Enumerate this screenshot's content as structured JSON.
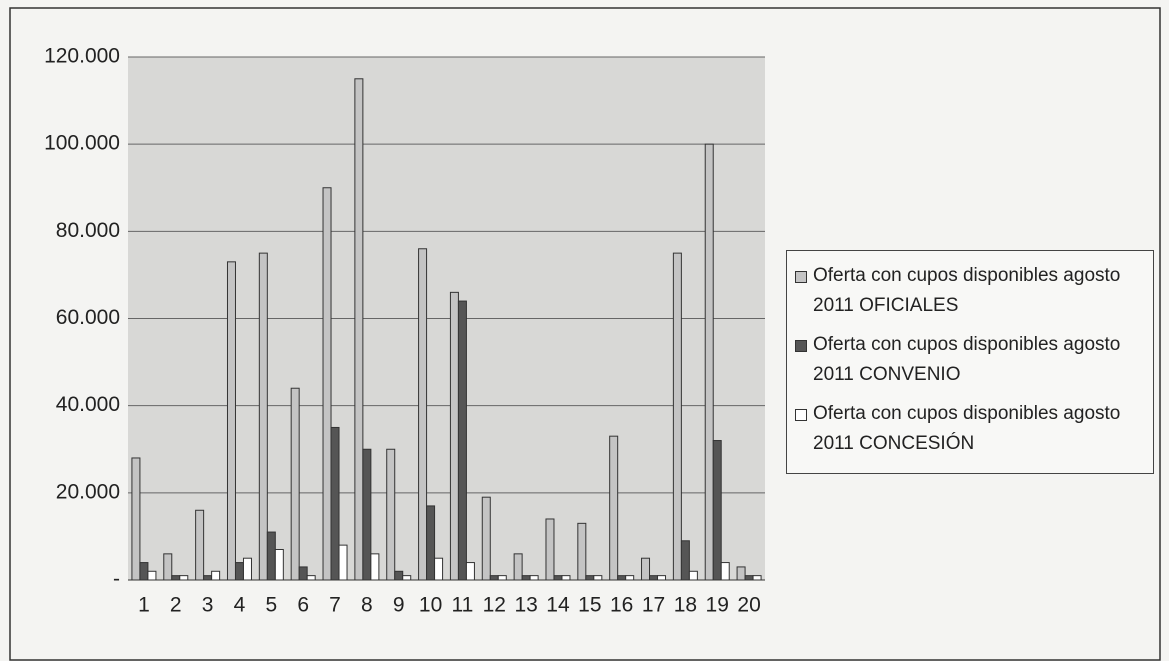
{
  "chart_data": {
    "type": "bar",
    "categories": [
      "1",
      "2",
      "3",
      "4",
      "5",
      "6",
      "7",
      "8",
      "9",
      "10",
      "11",
      "12",
      "13",
      "14",
      "15",
      "16",
      "17",
      "18",
      "19",
      "20"
    ],
    "series": [
      {
        "name": "Oferta con cupos disponibles agosto 2011 OFICIALES",
        "color": "#c4c4c4",
        "values": [
          28000,
          6000,
          16000,
          73000,
          75000,
          44000,
          90000,
          115000,
          30000,
          76000,
          66000,
          19000,
          6000,
          14000,
          13000,
          33000,
          5000,
          75000,
          100000,
          3000
        ]
      },
      {
        "name": "Oferta con cupos disponibles agosto 2011 CONVENIO",
        "color": "#555555",
        "values": [
          4000,
          1000,
          1000,
          4000,
          11000,
          3000,
          35000,
          30000,
          2000,
          17000,
          64000,
          1000,
          1000,
          1000,
          1000,
          1000,
          1000,
          9000,
          32000,
          1000
        ]
      },
      {
        "name": "Oferta con cupos disponibles agosto 2011 CONCESIÓN",
        "color": "#ffffff",
        "values": [
          2000,
          1000,
          2000,
          5000,
          7000,
          1000,
          8000,
          6000,
          1000,
          5000,
          4000,
          1000,
          1000,
          1000,
          1000,
          1000,
          1000,
          2000,
          4000,
          1000
        ]
      }
    ],
    "ylim": [
      0,
      120000
    ],
    "yticks": [
      {
        "value": 0,
        "label": "-"
      },
      {
        "value": 20000,
        "label": "20.000"
      },
      {
        "value": 40000,
        "label": "40.000"
      },
      {
        "value": 60000,
        "label": "60.000"
      },
      {
        "value": 80000,
        "label": "80.000"
      },
      {
        "value": 100000,
        "label": "100.000"
      },
      {
        "value": 120000,
        "label": "120.000"
      }
    ],
    "grid": true
  }
}
